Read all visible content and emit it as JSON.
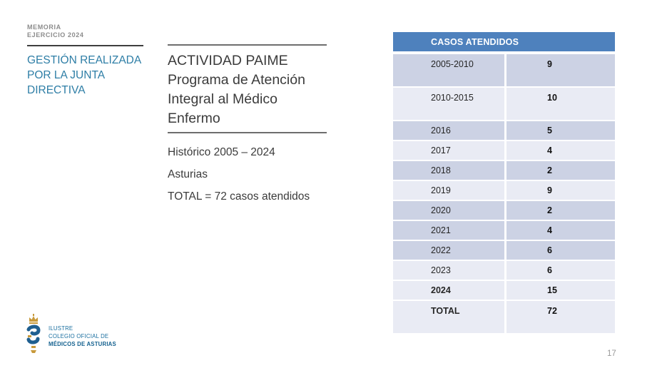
{
  "slide": {
    "kicker": "MEMORIA\nEJERCICIO 2024",
    "section_title": "GESTIÓN REALIZADA POR LA JUNTA DIRECTIVA",
    "title": "ACTIVIDAD PAIME Programa de Atención Integral al Médico Enfermo",
    "subtitle_lines": [
      "Histórico 2005 – 2024",
      "Asturias",
      "TOTAL = 72 casos atendidos"
    ],
    "page_number": "17"
  },
  "logo": {
    "line1": "ILUSTRE",
    "line2": "COLEGIO OFICIAL DE",
    "line3": "MÉDICOS DE ASTURIAS",
    "mark": "crown-and-serpent-emblem"
  },
  "table": {
    "header": "CASOS ATENDIDOS",
    "rows": [
      {
        "label": "2005-2010",
        "value": "9",
        "variant": "dark",
        "tall": true,
        "bold_label": false
      },
      {
        "label": "2010-2015",
        "value": "10",
        "variant": "light",
        "tall": true,
        "bold_label": false
      },
      {
        "label": "2016",
        "value": "5",
        "variant": "dark",
        "tall": false,
        "bold_label": false
      },
      {
        "label": "2017",
        "value": "4",
        "variant": "light",
        "tall": false,
        "bold_label": false
      },
      {
        "label": "2018",
        "value": "2",
        "variant": "dark",
        "tall": false,
        "bold_label": false
      },
      {
        "label": "2019",
        "value": "9",
        "variant": "light",
        "tall": false,
        "bold_label": false
      },
      {
        "label": "2020",
        "value": "2",
        "variant": "dark",
        "tall": false,
        "bold_label": false
      },
      {
        "label": "2021",
        "value": "4",
        "variant": "dark",
        "tall": false,
        "bold_label": false
      },
      {
        "label": "2022",
        "value": "6",
        "variant": "dark",
        "tall": false,
        "bold_label": false
      },
      {
        "label": "2023",
        "value": "6",
        "variant": "light",
        "tall": false,
        "bold_label": false
      },
      {
        "label": "2024",
        "value": "15",
        "variant": "light",
        "tall": false,
        "bold_label": true
      },
      {
        "label": "TOTAL",
        "value": "72",
        "variant": "light",
        "tall": true,
        "bold_label": true
      }
    ]
  },
  "chart_data": {
    "type": "table",
    "title": "CASOS ATENDIDOS",
    "categories": [
      "2005-2010",
      "2010-2015",
      "2016",
      "2017",
      "2018",
      "2019",
      "2020",
      "2021",
      "2022",
      "2023",
      "2024",
      "TOTAL"
    ],
    "values": [
      9,
      10,
      5,
      4,
      2,
      9,
      2,
      4,
      6,
      6,
      15,
      72
    ]
  },
  "colors": {
    "header_blue": "#4e81bd",
    "row_dark": "#ccd2e4",
    "row_light": "#e9ebf4",
    "accent_teal": "#2e7ea6",
    "logo_blue": "#1a6fa0",
    "crown_gold": "#c89a3c",
    "text_dark": "#3b3b3b"
  }
}
